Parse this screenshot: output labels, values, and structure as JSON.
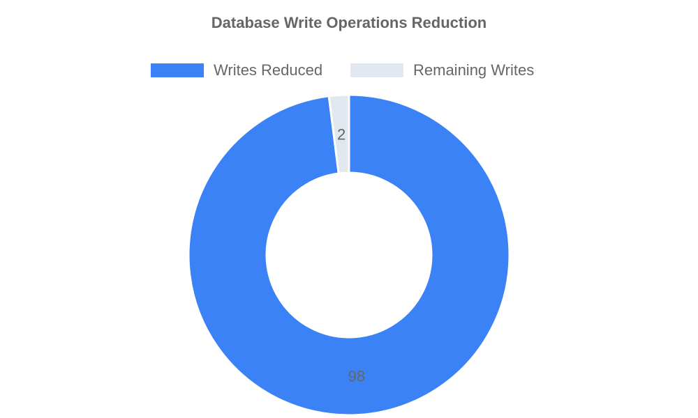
{
  "chart_data": {
    "type": "doughnut",
    "title": "Database Write Operations Reduction",
    "categories": [
      "Writes Reduced",
      "Remaining Writes"
    ],
    "values": [
      98,
      2
    ],
    "colors": [
      "#3b82f6",
      "#e2e8f0"
    ],
    "legend_position": "top",
    "data_labels": [
      "98",
      "2"
    ]
  }
}
